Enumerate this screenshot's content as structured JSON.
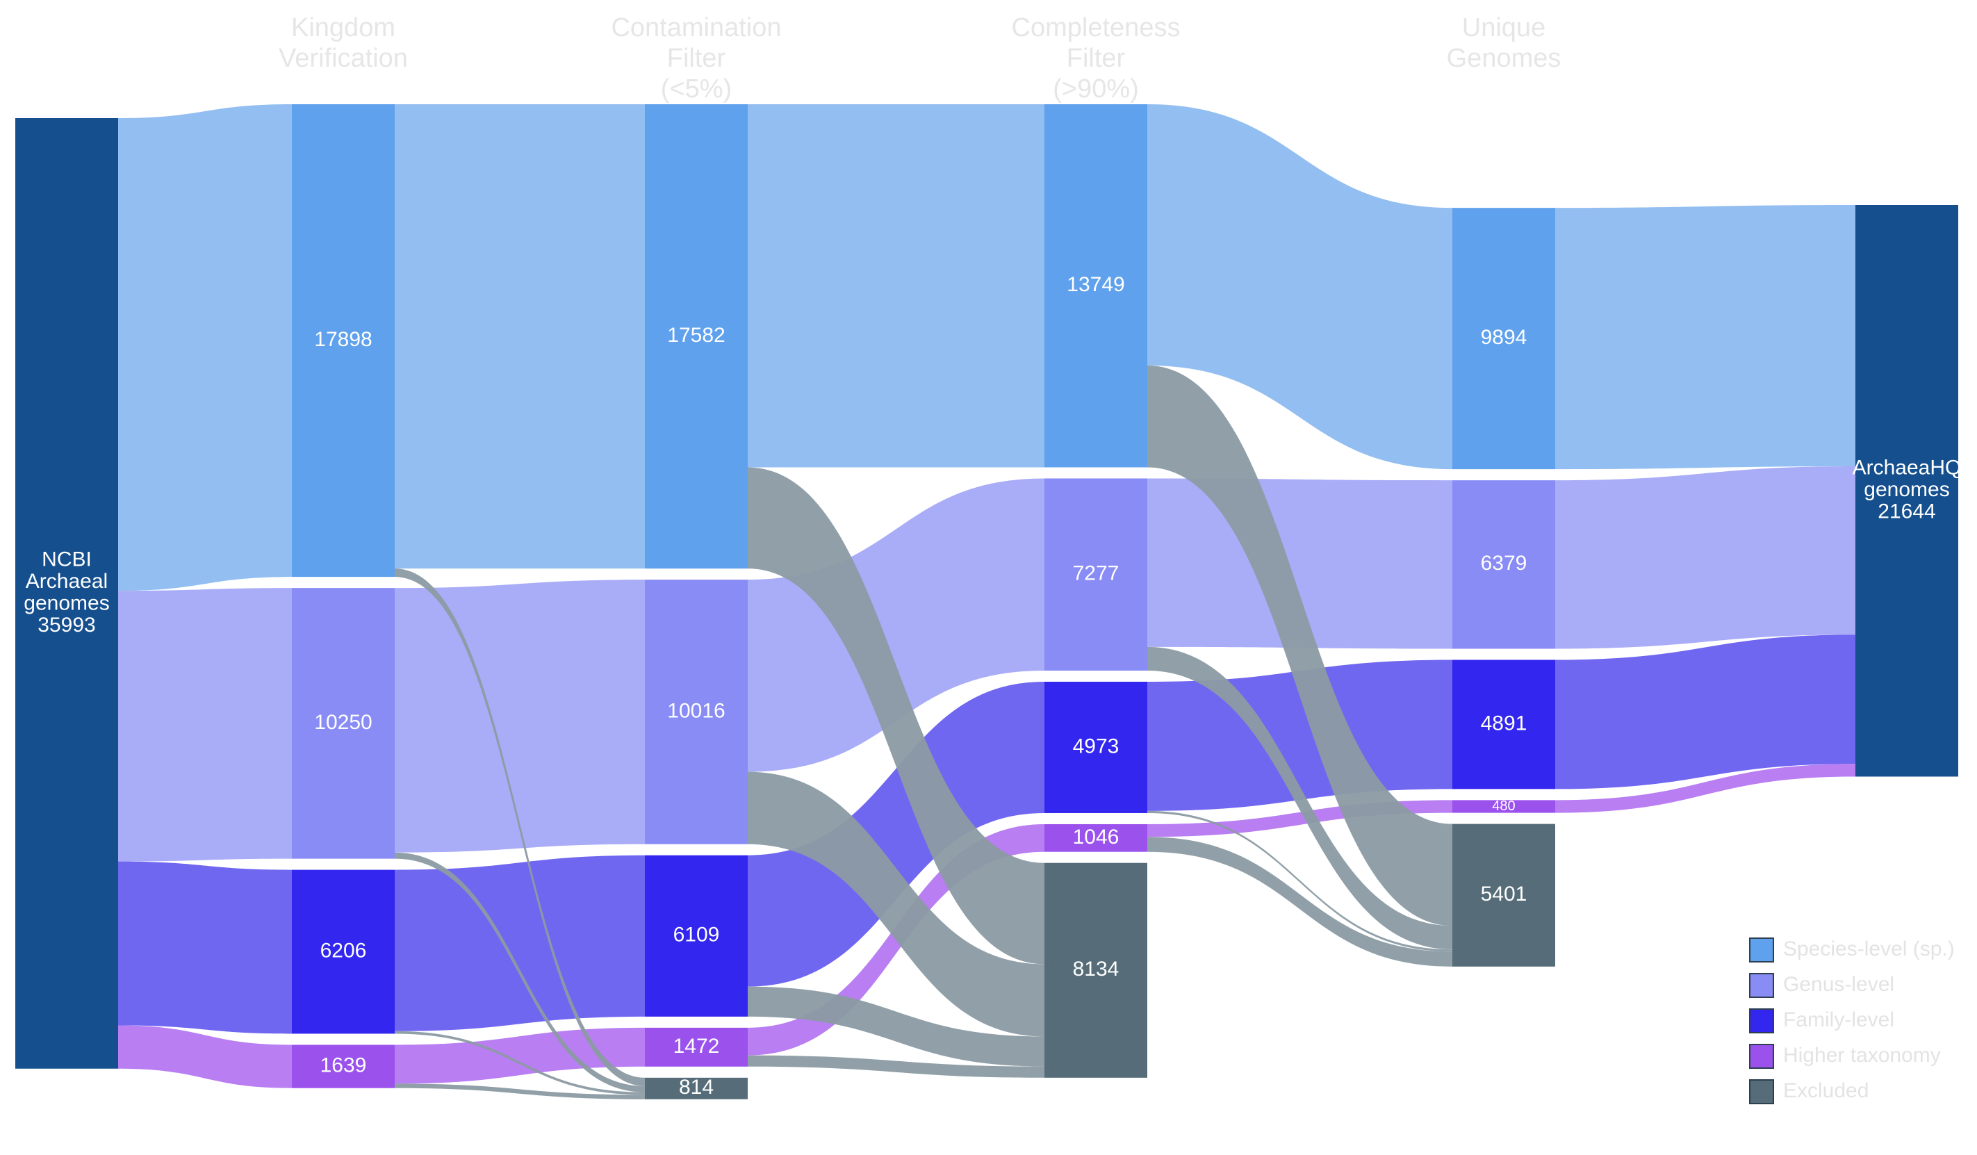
{
  "chart_data": {
    "type": "sankey",
    "stages": [
      {
        "line1": "Kingdom",
        "line2": "Verification",
        "line3": ""
      },
      {
        "line1": "Contamination",
        "line2": "Filter",
        "line3": "(<5%)"
      },
      {
        "line1": "Completeness",
        "line2": "Filter",
        "line3": "(>90%)"
      },
      {
        "line1": "Unique",
        "line2": "Genomes",
        "line3": ""
      }
    ],
    "legend": [
      {
        "key": "sp",
        "label": "Species-level (sp.)"
      },
      {
        "key": "ge",
        "label": "Genus-level"
      },
      {
        "key": "fa",
        "label": "Family-level"
      },
      {
        "key": "hi",
        "label": "Higher taxonomy"
      },
      {
        "key": "ex",
        "label": "Excluded"
      }
    ],
    "colors": {
      "node_endpoint": "#154f8e",
      "node_sp": "#5fa1ec",
      "node_ge": "#888cf4",
      "node_fa": "#3326ee",
      "node_hi": "#9b52ed",
      "node_ex": "#566d79",
      "flow_sp": "#93bef1",
      "flow_ge": "#a9acf7",
      "flow_fa": "#7067f1",
      "flow_hi": "#b87ef2",
      "flow_ex": "#8b9ba3"
    },
    "nodes": [
      {
        "id": "src",
        "stage": 0,
        "cat": "endpoint",
        "value": 35993,
        "lines": [
          "NCBI",
          "Archaeal",
          "genomes",
          "35993"
        ]
      },
      {
        "id": "k_sp",
        "stage": 1,
        "cat": "sp",
        "value": 17898,
        "lines": [
          "17898"
        ]
      },
      {
        "id": "k_ge",
        "stage": 1,
        "cat": "ge",
        "value": 10250,
        "lines": [
          "10250"
        ]
      },
      {
        "id": "k_fa",
        "stage": 1,
        "cat": "fa",
        "value": 6206,
        "lines": [
          "6206"
        ]
      },
      {
        "id": "k_hi",
        "stage": 1,
        "cat": "hi",
        "value": 1639,
        "lines": [
          "1639"
        ]
      },
      {
        "id": "c_sp",
        "stage": 2,
        "cat": "sp",
        "value": 17582,
        "lines": [
          "17582"
        ]
      },
      {
        "id": "c_ge",
        "stage": 2,
        "cat": "ge",
        "value": 10016,
        "lines": [
          "10016"
        ]
      },
      {
        "id": "c_fa",
        "stage": 2,
        "cat": "fa",
        "value": 6109,
        "lines": [
          "6109"
        ]
      },
      {
        "id": "c_hi",
        "stage": 2,
        "cat": "hi",
        "value": 1472,
        "lines": [
          "1472"
        ]
      },
      {
        "id": "c_ex",
        "stage": 2,
        "cat": "ex",
        "value": 814,
        "lines": [
          "814"
        ]
      },
      {
        "id": "m_sp",
        "stage": 3,
        "cat": "sp",
        "value": 13749,
        "lines": [
          "13749"
        ]
      },
      {
        "id": "m_ge",
        "stage": 3,
        "cat": "ge",
        "value": 7277,
        "lines": [
          "7277"
        ]
      },
      {
        "id": "m_fa",
        "stage": 3,
        "cat": "fa",
        "value": 4973,
        "lines": [
          "4973"
        ]
      },
      {
        "id": "m_hi",
        "stage": 3,
        "cat": "hi",
        "value": 1046,
        "lines": [
          "1046"
        ]
      },
      {
        "id": "m_ex",
        "stage": 3,
        "cat": "ex",
        "value": 8134,
        "lines": [
          "8134"
        ]
      },
      {
        "id": "u_sp",
        "stage": 4,
        "cat": "sp",
        "value": 9894,
        "lines": [
          "9894"
        ]
      },
      {
        "id": "u_ge",
        "stage": 4,
        "cat": "ge",
        "value": 6379,
        "lines": [
          "6379"
        ]
      },
      {
        "id": "u_fa",
        "stage": 4,
        "cat": "fa",
        "value": 4891,
        "lines": [
          "4891"
        ]
      },
      {
        "id": "u_hi",
        "stage": 4,
        "cat": "hi",
        "value": 480,
        "lines": [
          "480"
        ]
      },
      {
        "id": "u_ex",
        "stage": 4,
        "cat": "ex",
        "value": 5401,
        "lines": [
          "5401"
        ]
      },
      {
        "id": "dst",
        "stage": 5,
        "cat": "endpoint",
        "value": 21644,
        "lines": [
          "ArchaeaHQ",
          "genomes",
          "21644"
        ]
      }
    ],
    "links": [
      {
        "source": "src",
        "target": "k_sp",
        "value": 17898,
        "cat": "sp"
      },
      {
        "source": "src",
        "target": "k_ge",
        "value": 10250,
        "cat": "ge"
      },
      {
        "source": "src",
        "target": "k_fa",
        "value": 6206,
        "cat": "fa"
      },
      {
        "source": "src",
        "target": "k_hi",
        "value": 1639,
        "cat": "hi"
      },
      {
        "source": "k_sp",
        "target": "c_sp",
        "value": 17582,
        "cat": "sp"
      },
      {
        "source": "k_sp",
        "target": "c_ex",
        "value": 316,
        "cat": "ex"
      },
      {
        "source": "k_ge",
        "target": "c_ge",
        "value": 10016,
        "cat": "ge"
      },
      {
        "source": "k_ge",
        "target": "c_ex",
        "value": 234,
        "cat": "ex"
      },
      {
        "source": "k_fa",
        "target": "c_fa",
        "value": 6109,
        "cat": "fa"
      },
      {
        "source": "k_fa",
        "target": "c_ex",
        "value": 97,
        "cat": "ex"
      },
      {
        "source": "k_hi",
        "target": "c_hi",
        "value": 1472,
        "cat": "hi"
      },
      {
        "source": "k_hi",
        "target": "c_ex",
        "value": 167,
        "cat": "ex"
      },
      {
        "source": "c_sp",
        "target": "m_sp",
        "value": 13749,
        "cat": "sp"
      },
      {
        "source": "c_sp",
        "target": "m_ex",
        "value": 3833,
        "cat": "ex"
      },
      {
        "source": "c_ge",
        "target": "m_ge",
        "value": 7277,
        "cat": "ge"
      },
      {
        "source": "c_ge",
        "target": "m_ex",
        "value": 2739,
        "cat": "ex"
      },
      {
        "source": "c_fa",
        "target": "m_fa",
        "value": 4973,
        "cat": "fa"
      },
      {
        "source": "c_fa",
        "target": "m_ex",
        "value": 1136,
        "cat": "ex"
      },
      {
        "source": "c_hi",
        "target": "m_hi",
        "value": 1046,
        "cat": "hi"
      },
      {
        "source": "c_hi",
        "target": "m_ex",
        "value": 426,
        "cat": "ex"
      },
      {
        "source": "m_sp",
        "target": "u_sp",
        "value": 9894,
        "cat": "sp"
      },
      {
        "source": "m_sp",
        "target": "u_ex",
        "value": 3855,
        "cat": "ex"
      },
      {
        "source": "m_ge",
        "target": "u_ge",
        "value": 6379,
        "cat": "ge"
      },
      {
        "source": "m_ge",
        "target": "u_ex",
        "value": 898,
        "cat": "ex"
      },
      {
        "source": "m_fa",
        "target": "u_fa",
        "value": 4891,
        "cat": "fa"
      },
      {
        "source": "m_fa",
        "target": "u_ex",
        "value": 82,
        "cat": "ex"
      },
      {
        "source": "m_hi",
        "target": "u_hi",
        "value": 480,
        "cat": "hi"
      },
      {
        "source": "m_hi",
        "target": "u_ex",
        "value": 566,
        "cat": "ex"
      },
      {
        "source": "u_sp",
        "target": "dst",
        "value": 9894,
        "cat": "sp"
      },
      {
        "source": "u_ge",
        "target": "dst",
        "value": 6379,
        "cat": "ge"
      },
      {
        "source": "u_fa",
        "target": "dst",
        "value": 4891,
        "cat": "fa"
      },
      {
        "source": "u_hi",
        "target": "dst",
        "value": 480,
        "cat": "hi"
      }
    ]
  }
}
